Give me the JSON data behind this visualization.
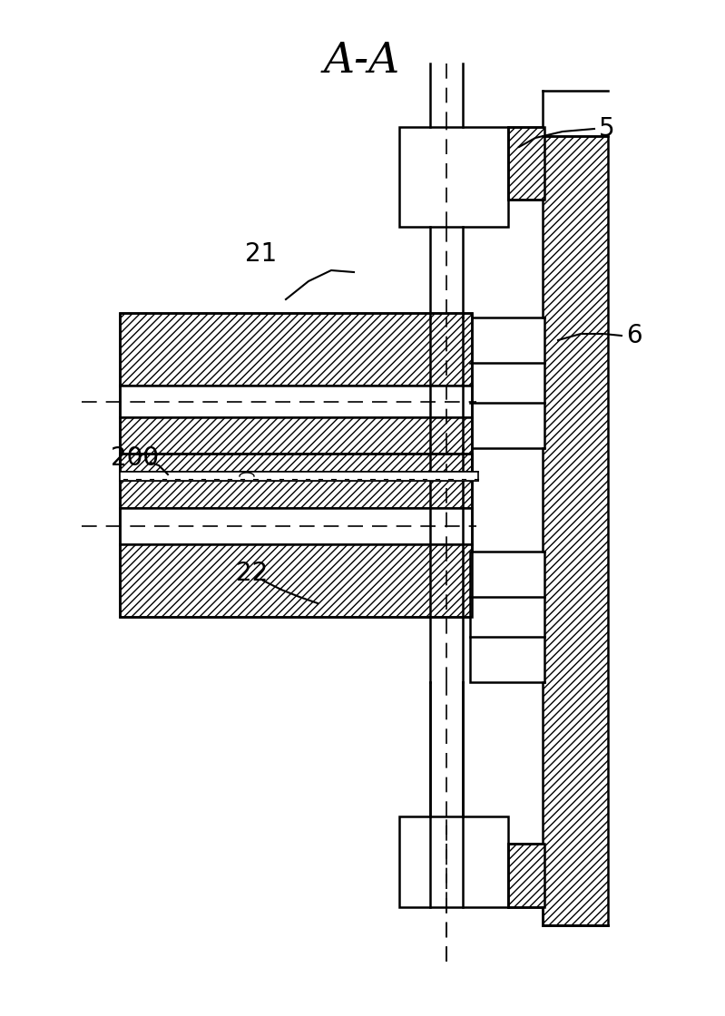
{
  "title": "A-A",
  "title_fontsize": 32,
  "bg_color": "#ffffff",
  "line_color": "#000000",
  "label_fontsize": 20,
  "lw": 1.8
}
